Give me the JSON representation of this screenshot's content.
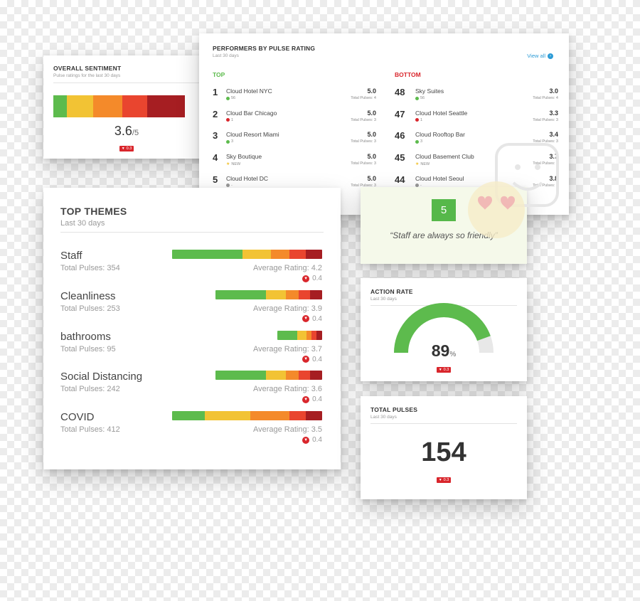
{
  "overall_sentiment": {
    "title": "OVERALL SENTIMENT",
    "subtitle": "Pulse ratings for the last 30 days",
    "segments": [
      {
        "color": "#5dbb4d",
        "share": 0.09
      },
      {
        "color": "#f2c334",
        "share": 0.18
      },
      {
        "color": "#f48a2a",
        "share": 0.2
      },
      {
        "color": "#e9452f",
        "share": 0.17
      },
      {
        "color": "#a61e22",
        "share": 0.26
      }
    ],
    "score": "3.6",
    "score_out_of": "/5",
    "change": "0.3"
  },
  "performers": {
    "title": "PERFORMERS BY PULSE RATING",
    "subtitle": "Last 30 days",
    "view_all": "View all",
    "top_label": "TOP",
    "bottom_label": "BOTTOM",
    "top_color": "#5dbb4d",
    "bottom_color": "#d9262c",
    "top": [
      {
        "rank": "1",
        "name": "Cloud Hotel NYC",
        "meta": "56",
        "trend": "up",
        "rating": "5.0",
        "pulses": "Total Pulses: 4"
      },
      {
        "rank": "2",
        "name": "Cloud Bar Chicago",
        "meta": "1",
        "trend": "down",
        "rating": "5.0",
        "pulses": "Total Pulses: 3"
      },
      {
        "rank": "3",
        "name": "Cloud Resort Miami",
        "meta": "3",
        "trend": "up",
        "rating": "5.0",
        "pulses": "Total Pulses: 3"
      },
      {
        "rank": "4",
        "name": "Sky Boutique",
        "meta": "NEW",
        "trend": "new",
        "rating": "5.0",
        "pulses": "Total Pulses: 3"
      },
      {
        "rank": "5",
        "name": "Cloud Hotel DC",
        "meta": "-",
        "trend": "none",
        "rating": "5.0",
        "pulses": "Total Pulses: 3"
      }
    ],
    "bottom": [
      {
        "rank": "48",
        "name": "Sky Suites",
        "meta": "56",
        "trend": "up",
        "rating": "3.0",
        "pulses": "Total Pulses: 4"
      },
      {
        "rank": "47",
        "name": "Cloud Hotel Seattle",
        "meta": "1",
        "trend": "down",
        "rating": "3.3",
        "pulses": "Total Pulses: 3"
      },
      {
        "rank": "46",
        "name": "Cloud Rooftop Bar",
        "meta": "3",
        "trend": "up",
        "rating": "3.4",
        "pulses": "Total Pulses: 3"
      },
      {
        "rank": "45",
        "name": "Cloud Basement Club",
        "meta": "NEW",
        "trend": "new",
        "rating": "3.7",
        "pulses": "Total Pulses: 3"
      },
      {
        "rank": "44",
        "name": "Cloud Hotel Seoul",
        "meta": "-",
        "trend": "none",
        "rating": "3.8",
        "pulses": "Total Pulses: 3"
      }
    ]
  },
  "top_themes": {
    "title": "TOP THEMES",
    "subtitle": "Last 30 days",
    "items": [
      {
        "name": "Staff",
        "pulses": "Total Pulses: 354",
        "avg": "Average Rating: 4.2",
        "change": "0.4",
        "bar_share": 1.0,
        "segments": [
          0.47,
          0.19,
          0.12,
          0.11,
          0.11
        ]
      },
      {
        "name": "Cleanliness",
        "pulses": "Total Pulses: 253",
        "avg": "Average Rating: 3.9",
        "change": "0.4",
        "bar_share": 0.71,
        "segments": [
          0.47,
          0.19,
          0.12,
          0.11,
          0.11
        ]
      },
      {
        "name": "bathrooms",
        "pulses": "Total Pulses: 95",
        "avg": "Average Rating: 3.7",
        "change": "0.4",
        "bar_share": 0.3,
        "segments": [
          0.45,
          0.2,
          0.12,
          0.11,
          0.12
        ]
      },
      {
        "name": "Social Distancing",
        "pulses": "Total Pulses: 242",
        "avg": "Average Rating: 3.6",
        "change": "0.4",
        "bar_share": 0.71,
        "segments": [
          0.47,
          0.19,
          0.12,
          0.11,
          0.11
        ]
      },
      {
        "name": "COVID",
        "pulses": "Total Pulses: 412",
        "avg": "Average Rating: 3.5",
        "change": "0.4",
        "bar_share": 1.0,
        "segments": [
          0.22,
          0.3,
          0.26,
          0.11,
          0.11
        ]
      }
    ],
    "colors": [
      "#5dbb4d",
      "#f2c334",
      "#f48a2a",
      "#e9452f",
      "#a61e22"
    ]
  },
  "quote": {
    "rating": "5",
    "text": "“Staff are always so friendly”"
  },
  "action_rate": {
    "title": "ACTION RATE",
    "subtitle": "Last 30 days",
    "value": "89",
    "unit": "%",
    "fraction": 0.89,
    "change": "0.3",
    "gauge_color": "#5dbb4d",
    "track_color": "#e8e8e8"
  },
  "total_pulses": {
    "title": "TOTAL PULSES",
    "subtitle": "Last 30 days",
    "value": "154",
    "change": "0.3"
  }
}
